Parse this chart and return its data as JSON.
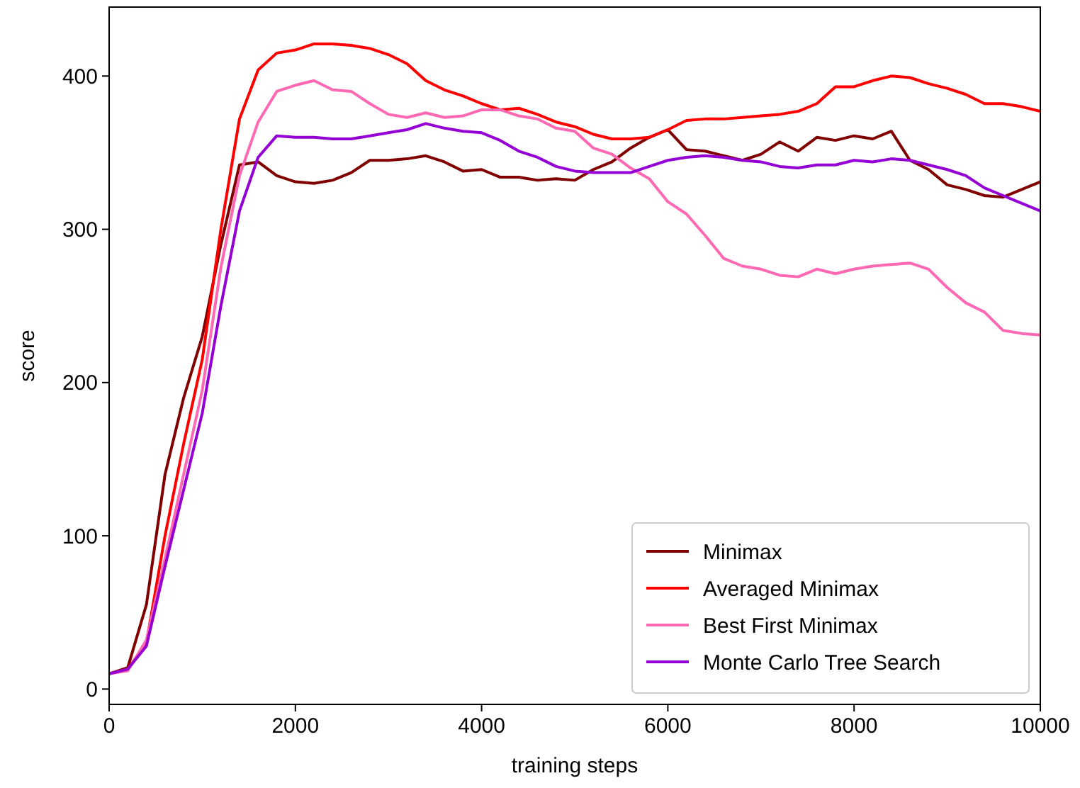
{
  "chart_data": {
    "type": "line",
    "xlabel": "training steps",
    "ylabel": "score",
    "x": [
      0,
      200,
      400,
      600,
      800,
      1000,
      1200,
      1400,
      1600,
      1800,
      2000,
      2200,
      2400,
      2600,
      2800,
      3000,
      3200,
      3400,
      3600,
      3800,
      4000,
      4200,
      4400,
      4600,
      4800,
      5000,
      5200,
      5400,
      5600,
      5800,
      6000,
      6200,
      6400,
      6600,
      6800,
      7000,
      7200,
      7400,
      7600,
      7800,
      8000,
      8200,
      8400,
      8600,
      8800,
      9000,
      9200,
      9400,
      9600,
      9800,
      10000
    ],
    "xlim": [
      0,
      10000
    ],
    "xticks": [
      0,
      2000,
      4000,
      6000,
      8000,
      10000
    ],
    "ylim": [
      -10,
      445
    ],
    "yticks": [
      0,
      100,
      200,
      300,
      400
    ],
    "grid": false,
    "legend": "bottom right",
    "line_style": "solid",
    "marker": "none",
    "series": [
      {
        "name": "Minimax",
        "color": "#800000",
        "values": [
          10,
          14,
          55,
          140,
          190,
          230,
          290,
          342,
          344,
          335,
          331,
          330,
          332,
          337,
          345,
          345,
          346,
          348,
          344,
          338,
          339,
          334,
          334,
          332,
          333,
          332,
          339,
          344,
          353,
          360,
          365,
          352,
          351,
          348,
          345,
          349,
          357,
          351,
          360,
          358,
          361,
          359,
          364,
          345,
          339,
          329,
          326,
          322,
          321,
          326,
          331
        ]
      },
      {
        "name": "Averaged Minimax",
        "color": "#ff0000",
        "values": [
          10,
          13,
          30,
          100,
          160,
          215,
          300,
          372,
          404,
          415,
          417,
          421,
          421,
          420,
          418,
          414,
          408,
          397,
          391,
          387,
          382,
          378,
          379,
          375,
          370,
          367,
          362,
          359,
          359,
          360,
          365,
          371,
          372,
          372,
          373,
          374,
          375,
          377,
          382,
          393,
          393,
          397,
          400,
          399,
          395,
          392,
          388,
          382,
          382,
          380,
          377
        ]
      },
      {
        "name": "Best First Minimax",
        "color": "#ff69b4",
        "values": [
          10,
          12,
          32,
          85,
          140,
          195,
          275,
          335,
          370,
          390,
          394,
          397,
          391,
          390,
          382,
          375,
          373,
          376,
          373,
          374,
          378,
          378,
          374,
          372,
          366,
          364,
          353,
          349,
          340,
          333,
          318,
          310,
          296,
          281,
          276,
          274,
          270,
          269,
          274,
          271,
          274,
          276,
          277,
          278,
          274,
          262,
          252,
          246,
          234,
          232,
          231
        ]
      },
      {
        "name": "Monte Carlo Tree Search",
        "color": "#9400d3",
        "values": [
          10,
          13,
          28,
          80,
          130,
          180,
          250,
          312,
          347,
          361,
          360,
          360,
          359,
          359,
          361,
          363,
          365,
          369,
          366,
          364,
          363,
          358,
          351,
          347,
          341,
          338,
          337,
          337,
          337,
          341,
          345,
          347,
          348,
          347,
          345,
          344,
          341,
          340,
          342,
          342,
          345,
          344,
          346,
          345,
          342,
          339,
          335,
          327,
          322,
          317,
          312
        ]
      }
    ]
  }
}
